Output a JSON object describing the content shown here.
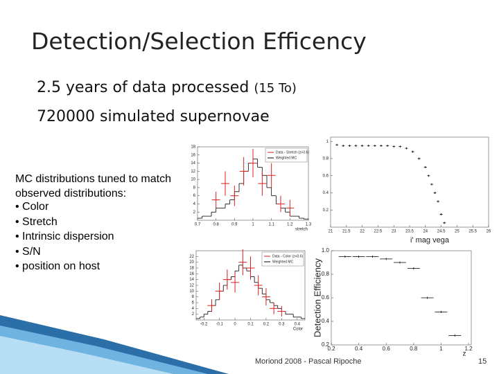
{
  "title": "Detection/Selection Efficency",
  "line1": "2.5 years of data processed",
  "line1_note": "(15 To)",
  "line2": "720000 simulated supernovae",
  "intro": "MC distributions tuned to match observed distributions:",
  "bullets": [
    "• Color",
    "• Stretch",
    "• Intrinsic dispersion",
    "• S/N",
    "• position on host"
  ],
  "footer": "Moriond 2008 - Pascal Ripoche",
  "page": "15",
  "chart_data": [
    {
      "type": "histogram",
      "xlabel": "stretch",
      "xlim": [
        0.7,
        1.3
      ],
      "xticks": [
        0.7,
        0.8,
        0.9,
        1,
        1.1,
        1.2,
        1.3
      ],
      "ylim": [
        0,
        18
      ],
      "yticks": [
        2,
        4,
        6,
        8,
        10,
        12,
        14,
        16,
        18
      ],
      "bins": [
        0.7,
        0.725,
        0.75,
        0.775,
        0.8,
        0.825,
        0.85,
        0.875,
        0.9,
        0.925,
        0.95,
        0.975,
        1,
        1.025,
        1.05,
        1.075,
        1.1,
        1.125,
        1.15,
        1.175,
        1.2,
        1.225,
        1.25,
        1.275,
        1.3
      ],
      "series": [
        {
          "name": "Weighted MC",
          "color": "#000000",
          "values": [
            0.5,
            1,
            1,
            2,
            3,
            3,
            4,
            5,
            7,
            9,
            12,
            14,
            15,
            13,
            11,
            8,
            6,
            4,
            3,
            2,
            1,
            1,
            0.5,
            0.3
          ]
        }
      ],
      "points": {
        "name": "Data - Stretch (z<0.6)",
        "color": "#d81e1e",
        "x": [
          0.8,
          0.85,
          0.9,
          0.95,
          1.0,
          1.05,
          1.1,
          1.15,
          1.2
        ],
        "values": [
          5,
          9,
          6,
          12,
          14,
          9,
          11,
          4,
          3
        ],
        "errors": [
          2,
          3,
          2.5,
          3.5,
          3.5,
          3,
          3,
          2,
          2
        ]
      }
    },
    {
      "type": "histogram",
      "xlabel": "Color",
      "xlim": [
        -0.25,
        0.45
      ],
      "xticks": [
        -0.2,
        -0.1,
        0,
        0.1,
        0.2,
        0.3,
        0.4
      ],
      "ylim": [
        0,
        24
      ],
      "yticks": [
        2,
        4,
        6,
        8,
        10,
        12,
        14,
        16,
        18,
        20,
        22
      ],
      "bins": [
        -0.25,
        -0.225,
        -0.2,
        -0.175,
        -0.15,
        -0.125,
        -0.1,
        -0.075,
        -0.05,
        -0.025,
        0,
        0.025,
        0.05,
        0.075,
        0.1,
        0.125,
        0.15,
        0.175,
        0.2,
        0.225,
        0.25,
        0.275,
        0.3,
        0.325,
        0.35,
        0.375,
        0.4,
        0.425,
        0.45
      ],
      "series": [
        {
          "name": "Weighted MC",
          "color": "#000000",
          "values": [
            0.5,
            1,
            2,
            3,
            5,
            7,
            10,
            12,
            14,
            15,
            17,
            19,
            18,
            17,
            15,
            13,
            11,
            9,
            7,
            6,
            5,
            4,
            3,
            2,
            2,
            1,
            1,
            0.5
          ]
        }
      ],
      "points": {
        "name": "Data - Color (z<0.6)",
        "color": "#d81e1e",
        "x": [
          -0.15,
          -0.1,
          -0.05,
          0,
          0.05,
          0.1,
          0.15,
          0.2,
          0.25,
          0.3
        ],
        "values": [
          5,
          10,
          14,
          13,
          20,
          18,
          12,
          8,
          4,
          3
        ],
        "errors": [
          2.2,
          3,
          3.5,
          3.5,
          4.5,
          4,
          3.5,
          3,
          2,
          1.8
        ]
      }
    },
    {
      "type": "scatter",
      "xlabel": "i' mag vega",
      "xlim": [
        21,
        26
      ],
      "xticks": [
        21,
        21.5,
        22,
        22.5,
        23,
        23.5,
        24,
        24.5,
        25,
        25.5,
        26
      ],
      "ylim": [
        0,
        1.05
      ],
      "yticks": [
        0.2,
        0.4,
        0.6,
        0.8,
        1
      ],
      "color": "#000000",
      "x": [
        21.2,
        21.4,
        21.6,
        21.8,
        22.0,
        22.2,
        22.4,
        22.6,
        22.8,
        23.0,
        23.2,
        23.4,
        23.6,
        23.8,
        24.0,
        24.1,
        24.2,
        24.3,
        24.4,
        24.5,
        24.6
      ],
      "values": [
        0.96,
        0.95,
        0.95,
        0.95,
        0.95,
        0.95,
        0.95,
        0.95,
        0.95,
        0.94,
        0.94,
        0.92,
        0.88,
        0.8,
        0.7,
        0.6,
        0.5,
        0.4,
        0.3,
        0.15,
        0.05
      ]
    },
    {
      "type": "scatter",
      "xlabel": "z",
      "ylabel": "Detection Efficiency",
      "xlim": [
        0.2,
        1.22
      ],
      "xticks": [
        0.2,
        0.4,
        0.6,
        0.8,
        1,
        1.2
      ],
      "ylim": [
        0.2,
        1.0
      ],
      "yticks": [
        0.2,
        0.4,
        0.6,
        {
          "value": 1,
          "label": "1.0"
        },
        0.8
      ],
      "color": "#000000",
      "x": [
        0.3,
        0.4,
        0.5,
        0.6,
        0.7,
        0.8,
        0.9,
        1.0,
        1.1
      ],
      "values": [
        0.95,
        0.95,
        0.95,
        0.93,
        0.9,
        0.85,
        0.6,
        0.48,
        0.28
      ]
    }
  ]
}
